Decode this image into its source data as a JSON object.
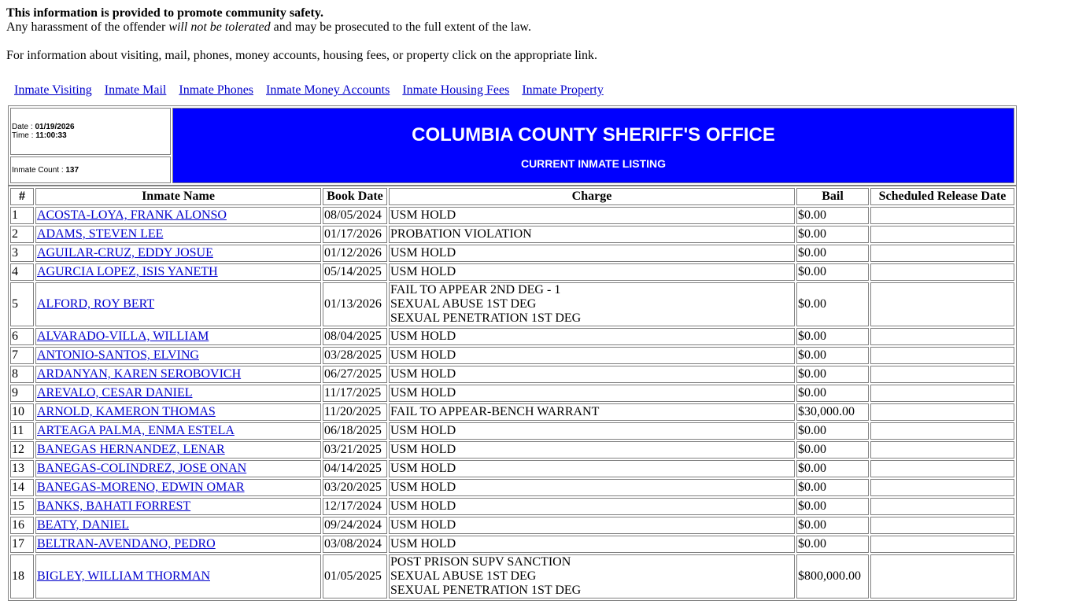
{
  "notice": {
    "bold": "This information is provided to promote community safety.",
    "line2_pre": "Any harassment of the offender ",
    "line2_em": "will not be tolerated",
    "line2_post": " and may be prosecuted to the full extent of the law.",
    "info": "For information about visiting, mail, phones, money accounts, housing fees, or property click on the appropriate link."
  },
  "links": [
    "Inmate Visiting",
    "Inmate Mail",
    "Inmate Phones",
    "Inmate Money Accounts",
    "Inmate Housing Fees",
    "Inmate Property"
  ],
  "header": {
    "date_label": "Date : ",
    "date": "01/19/2026",
    "time_label": "Time : ",
    "time": "11:00:33",
    "count_label": "Inmate Count : ",
    "count": "137",
    "title": "COLUMBIA COUNTY SHERIFF'S OFFICE",
    "subtitle": "CURRENT INMATE LISTING",
    "color": "#0000ff"
  },
  "columns": [
    "#",
    "Inmate Name",
    "Book Date",
    "Charge",
    "Bail",
    "Scheduled Release Date"
  ],
  "rows": [
    {
      "n": "1",
      "name": "ACOSTA-LOYA, FRANK ALONSO",
      "date": "08/05/2024",
      "charges": [
        "USM HOLD"
      ],
      "bail": "$0.00",
      "release": ""
    },
    {
      "n": "2",
      "name": "ADAMS, STEVEN LEE",
      "date": "01/17/2026",
      "charges": [
        "PROBATION VIOLATION"
      ],
      "bail": "$0.00",
      "release": ""
    },
    {
      "n": "3",
      "name": "AGUILAR-CRUZ, EDDY JOSUE",
      "date": "01/12/2026",
      "charges": [
        "USM HOLD"
      ],
      "bail": "$0.00",
      "release": ""
    },
    {
      "n": "4",
      "name": "AGURCIA LOPEZ, ISIS YANETH",
      "date": "05/14/2025",
      "charges": [
        "USM HOLD"
      ],
      "bail": "$0.00",
      "release": ""
    },
    {
      "n": "5",
      "name": "ALFORD, ROY BERT",
      "date": "01/13/2026",
      "charges": [
        "FAIL TO APPEAR 2ND DEG - 1",
        "SEXUAL ABUSE 1ST DEG",
        "SEXUAL PENETRATION 1ST DEG"
      ],
      "bail": "$0.00",
      "release": ""
    },
    {
      "n": "6",
      "name": "ALVARADO-VILLA, WILLIAM",
      "date": "08/04/2025",
      "charges": [
        "USM HOLD"
      ],
      "bail": "$0.00",
      "release": ""
    },
    {
      "n": "7",
      "name": "ANTONIO-SANTOS, ELVING",
      "date": "03/28/2025",
      "charges": [
        "USM HOLD"
      ],
      "bail": "$0.00",
      "release": ""
    },
    {
      "n": "8",
      "name": "ARDANYAN, KAREN SEROBOVICH",
      "date": "06/27/2025",
      "charges": [
        "USM HOLD"
      ],
      "bail": "$0.00",
      "release": ""
    },
    {
      "n": "9",
      "name": "AREVALO, CESAR DANIEL",
      "date": "11/17/2025",
      "charges": [
        "USM HOLD"
      ],
      "bail": "$0.00",
      "release": ""
    },
    {
      "n": "10",
      "name": "ARNOLD, KAMERON THOMAS",
      "date": "11/20/2025",
      "charges": [
        "FAIL TO APPEAR-BENCH WARRANT"
      ],
      "bail": "$30,000.00",
      "release": ""
    },
    {
      "n": "11",
      "name": "ARTEAGA PALMA, ENMA ESTELA",
      "date": "06/18/2025",
      "charges": [
        "USM HOLD"
      ],
      "bail": "$0.00",
      "release": ""
    },
    {
      "n": "12",
      "name": "BANEGAS HERNANDEZ, LENAR",
      "date": "03/21/2025",
      "charges": [
        "USM HOLD"
      ],
      "bail": "$0.00",
      "release": ""
    },
    {
      "n": "13",
      "name": "BANEGAS-COLINDREZ, JOSE ONAN",
      "date": "04/14/2025",
      "charges": [
        "USM HOLD"
      ],
      "bail": "$0.00",
      "release": ""
    },
    {
      "n": "14",
      "name": "BANEGAS-MORENO, EDWIN OMAR",
      "date": "03/20/2025",
      "charges": [
        "USM HOLD"
      ],
      "bail": "$0.00",
      "release": ""
    },
    {
      "n": "15",
      "name": "BANKS, BAHATI FORREST",
      "date": "12/17/2024",
      "charges": [
        "USM HOLD"
      ],
      "bail": "$0.00",
      "release": ""
    },
    {
      "n": "16",
      "name": "BEATY, DANIEL",
      "date": "09/24/2024",
      "charges": [
        "USM HOLD"
      ],
      "bail": "$0.00",
      "release": ""
    },
    {
      "n": "17",
      "name": "BELTRAN-AVENDANO, PEDRO",
      "date": "03/08/2024",
      "charges": [
        "USM HOLD"
      ],
      "bail": "$0.00",
      "release": ""
    },
    {
      "n": "18",
      "name": "BIGLEY, WILLIAM THORMAN",
      "date": "01/05/2025",
      "charges": [
        "POST PRISON SUPV SANCTION",
        "SEXUAL ABUSE 1ST DEG",
        "SEXUAL PENETRATION 1ST DEG"
      ],
      "bail": "$800,000.00",
      "release": ""
    }
  ]
}
